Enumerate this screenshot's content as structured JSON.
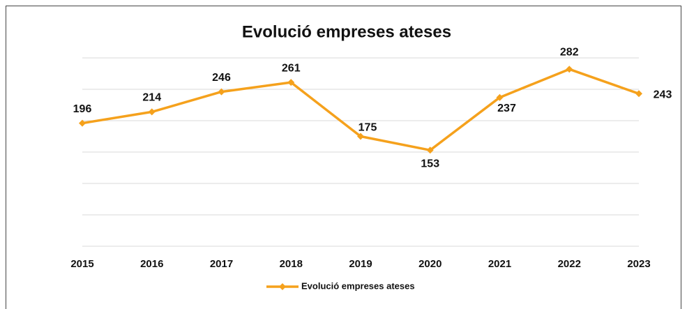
{
  "chart_data": {
    "type": "line",
    "title": "Evolució empreses ateses",
    "categories": [
      "2015",
      "2016",
      "2017",
      "2018",
      "2019",
      "2020",
      "2021",
      "2022",
      "2023"
    ],
    "series": [
      {
        "name": "Evolució empreses ateses",
        "color": "#f5a11c",
        "values": [
          196,
          214,
          246,
          261,
          175,
          153,
          237,
          282,
          243
        ]
      }
    ],
    "ylim": [
      0,
      300
    ],
    "yticks": [
      0,
      50,
      100,
      150,
      200,
      250,
      300
    ],
    "grid": true,
    "legend": "bottom"
  }
}
